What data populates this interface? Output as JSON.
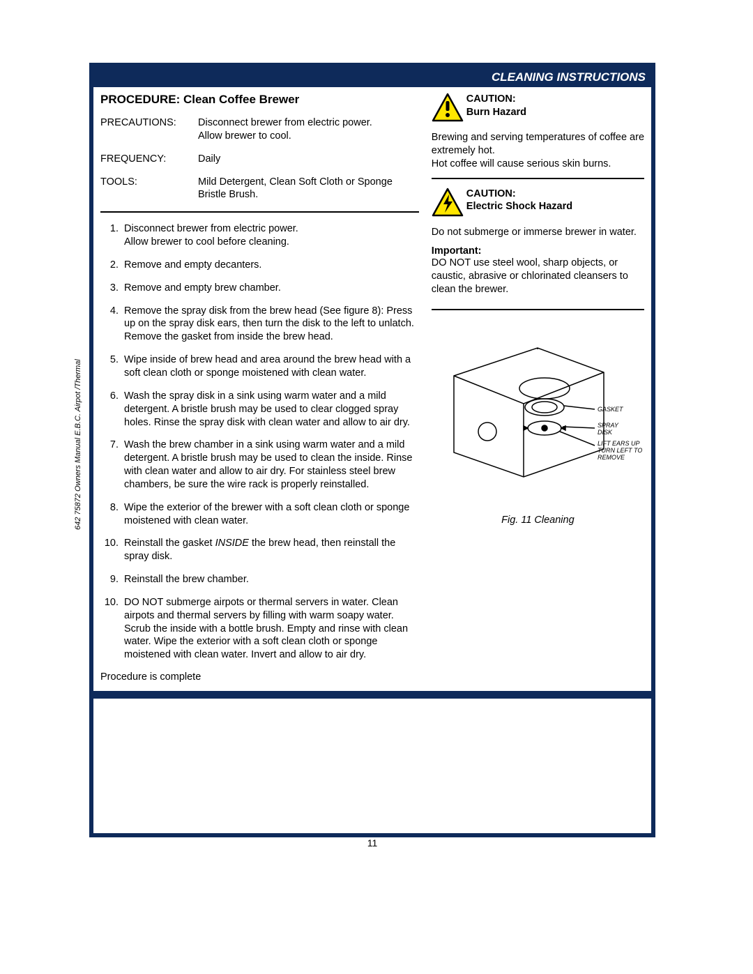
{
  "colors": {
    "frame": "#0e2a5a",
    "bg": "#ffffff",
    "text": "#000000"
  },
  "header": {
    "title": "CLEANING INSTRUCTIONS"
  },
  "procedure": {
    "title": "PROCEDURE:  Clean Coffee Brewer",
    "meta": {
      "precautions_label": "PRECAUTIONS:",
      "precautions": "Disconnect brewer from electric power.\nAllow brewer to cool.",
      "frequency_label": "FREQUENCY:",
      "frequency": "Daily",
      "tools_label": "TOOLS:",
      "tools": "Mild Detergent, Clean Soft Cloth or Sponge\nBristle Brush."
    },
    "steps": [
      "Disconnect brewer from electric power.\nAllow brewer to cool before cleaning.",
      "Remove and empty decanters.",
      "Remove and empty brew chamber.",
      "Remove the spray disk from the brew head (See figure 8): Press up on the spray disk ears, then turn the disk to the left to unlatch.  Remove the gasket from inside the brew head.",
      "Wipe inside of brew head and area around the brew head with a soft clean cloth or sponge moistened with clean water.",
      "Wash the spray disk in a sink using warm water and a mild detergent.  A bristle brush may be used to clear clogged spray holes.  Rinse the spray disk with clean water and allow to air dry.",
      "Wash the brew chamber in a sink using warm water and a mild detergent.  A bristle brush may be used to clean the inside. Rinse with clean water and allow to air dry.  For stainless steel brew chambers, be sure the wire rack is properly reinstalled.",
      "Wipe the exterior of the brewer with a soft clean cloth or sponge moistened with clean water.",
      "Reinstall the gasket INSIDE the brew head, then reinstall the spray disk.",
      "Reinstall the brew chamber.",
      "DO NOT submerge airpots or thermal servers in water.  Clean airpots and thermal servers by filling with warm soapy water.  Scrub the inside with a bottle brush.  Empty and rinse with clean water.  Wipe the exterior with a soft clean cloth or sponge moistened with clean water.  Invert and allow to air dry."
    ],
    "step_numbering": {
      "skip_after": 8,
      "skip_to": 10
    },
    "completion": "Procedure is complete"
  },
  "warnings": {
    "burn": {
      "title": "CAUTION:",
      "subtitle": "Burn Hazard",
      "body": "Brewing and serving temperatures of coffee are extremely hot.\nHot coffee will cause serious skin burns."
    },
    "shock": {
      "title": "CAUTION:",
      "subtitle": "Electric Shock Hazard",
      "body": "Do not submerge or immerse brewer in water."
    },
    "important": {
      "title": "Important:",
      "body": "DO NOT use steel wool, sharp objects, or caustic, abrasive or chlorinated cleansers to clean the brewer."
    }
  },
  "figure": {
    "caption": "Fig. 11  Cleaning",
    "labels": {
      "gasket": "GASKET",
      "spray_disk": "SPRAY\nDISK",
      "lift": "LIFT EARS UP\nTURN LEFT TO\nREMOVE"
    }
  },
  "page_number": "11",
  "side_label": "642  75872 Owners Manual E.B.C. Airpot /Thermal"
}
